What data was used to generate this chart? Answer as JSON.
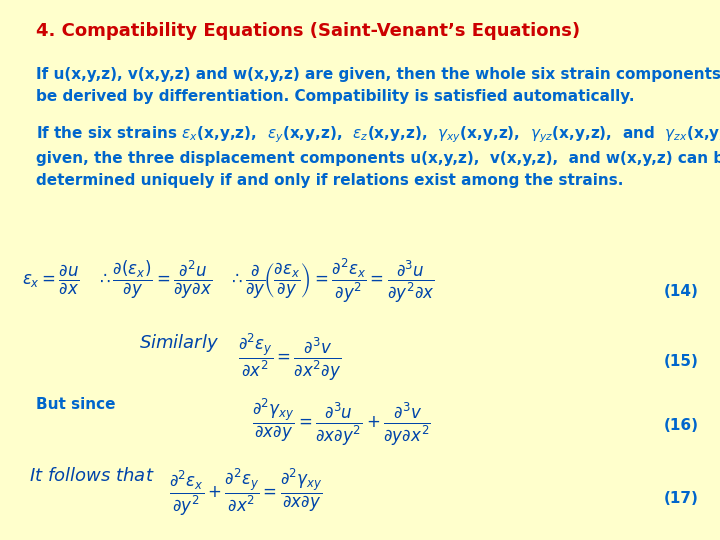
{
  "background_color": "#ffffcc",
  "title": "4. Compatibility Equations (Saint-Venant’s Equations)",
  "title_color": "#cc0000",
  "title_fontsize": 13,
  "body_color": "#0066cc",
  "body_fontsize": 11,
  "eq_color": "#0044aa",
  "eq14_label": "(14)",
  "eq15_label": "(15)",
  "eq16_label": "(16)",
  "eq17_label": "(17)"
}
